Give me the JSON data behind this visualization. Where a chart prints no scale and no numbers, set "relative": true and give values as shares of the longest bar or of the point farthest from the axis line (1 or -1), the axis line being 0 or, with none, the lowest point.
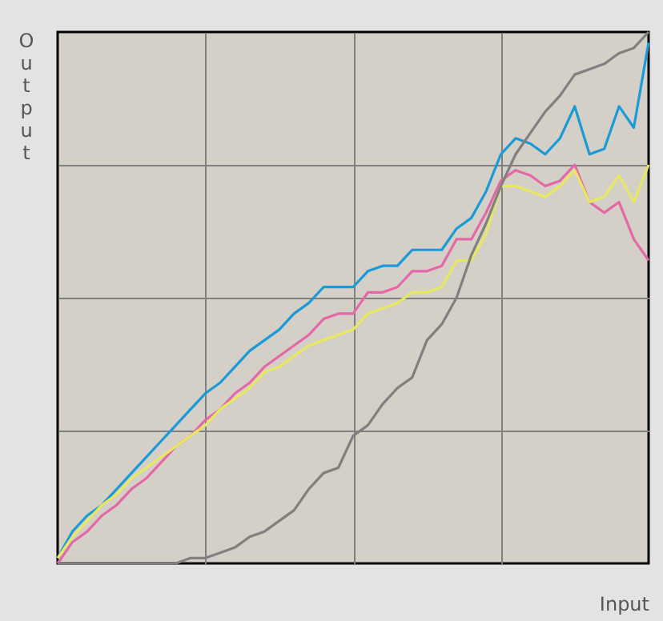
{
  "chart_data": {
    "type": "line",
    "relative": true,
    "xlabel": "Input",
    "ylabel": "Output",
    "grid": true,
    "tick_labels": false,
    "categories": [
      null,
      null,
      null,
      null,
      null,
      null,
      null,
      null,
      null,
      null,
      null,
      null,
      null,
      null,
      null,
      null,
      null,
      null,
      null,
      null,
      null,
      null,
      null,
      null,
      null,
      null,
      null,
      null,
      null,
      null,
      null,
      null,
      null,
      null,
      null,
      null,
      null,
      null,
      null,
      null,
      null
    ],
    "series": [
      {
        "color": "#1a9ad6",
        "values": [
          0.01,
          0.06,
          0.09,
          0.11,
          0.14,
          0.17,
          0.2,
          0.23,
          0.26,
          0.29,
          0.32,
          0.34,
          0.37,
          0.4,
          0.42,
          0.44,
          0.47,
          0.49,
          0.52,
          0.52,
          0.52,
          0.55,
          0.56,
          0.56,
          0.59,
          0.59,
          0.59,
          0.63,
          0.65,
          0.7,
          0.77,
          0.8,
          0.79,
          0.77,
          0.8,
          0.86,
          0.77,
          0.78,
          0.86,
          0.82,
          0.98
        ]
      },
      {
        "color": "#e468a8",
        "values": [
          0.0,
          0.04,
          0.06,
          0.09,
          0.11,
          0.14,
          0.16,
          0.19,
          0.22,
          0.24,
          0.27,
          0.29,
          0.32,
          0.34,
          0.37,
          0.39,
          0.41,
          0.43,
          0.46,
          0.47,
          0.47,
          0.51,
          0.51,
          0.52,
          0.55,
          0.55,
          0.56,
          0.61,
          0.61,
          0.66,
          0.72,
          0.74,
          0.73,
          0.71,
          0.72,
          0.75,
          0.68,
          0.66,
          0.68,
          0.61,
          0.57
        ]
      },
      {
        "color": "#e8e860",
        "values": [
          0.01,
          0.05,
          0.08,
          0.11,
          0.13,
          0.16,
          0.18,
          0.2,
          0.22,
          0.24,
          0.26,
          0.29,
          0.31,
          0.33,
          0.36,
          0.37,
          0.39,
          0.41,
          0.42,
          0.43,
          0.44,
          0.47,
          0.48,
          0.49,
          0.51,
          0.51,
          0.52,
          0.57,
          0.57,
          0.62,
          0.71,
          0.71,
          0.7,
          0.69,
          0.71,
          0.74,
          0.68,
          0.69,
          0.73,
          0.68,
          0.75
        ]
      },
      {
        "color": "#808080",
        "values": [
          0.0,
          0.0,
          0.0,
          0.0,
          0.0,
          0.0,
          0.0,
          0.0,
          0.0,
          0.01,
          0.01,
          0.02,
          0.03,
          0.05,
          0.06,
          0.08,
          0.1,
          0.14,
          0.17,
          0.18,
          0.24,
          0.26,
          0.3,
          0.33,
          0.35,
          0.42,
          0.45,
          0.5,
          0.58,
          0.64,
          0.71,
          0.77,
          0.81,
          0.85,
          0.88,
          0.92,
          0.93,
          0.94,
          0.96,
          0.97,
          1.0
        ]
      }
    ]
  }
}
